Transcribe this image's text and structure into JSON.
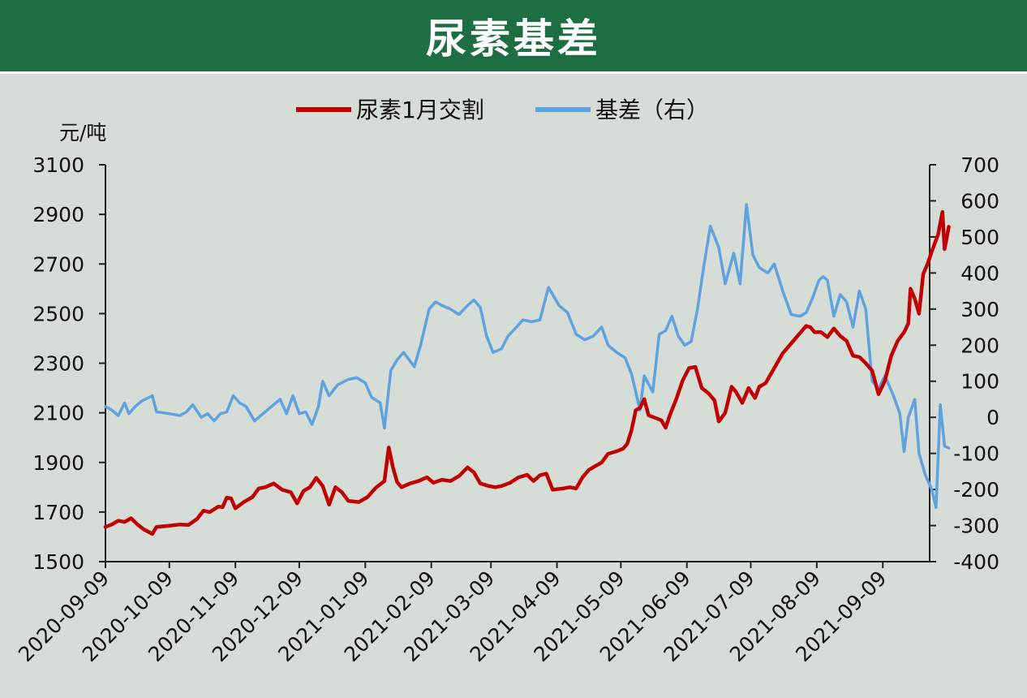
{
  "page": {
    "title": "尿素基差"
  },
  "chart_data": {
    "type": "line",
    "title": "尿素基差",
    "y_left_label": "元/吨",
    "y_left_range": [
      1500,
      3100
    ],
    "y_left_ticks": [
      1500,
      1700,
      1900,
      2100,
      2300,
      2500,
      2700,
      2900,
      3100
    ],
    "y_right_range": [
      -400,
      700
    ],
    "y_right_ticks": [
      -400,
      -300,
      -200,
      -100,
      0,
      100,
      200,
      300,
      400,
      500,
      600,
      700
    ],
    "x_range": [
      "2020-09-09",
      "2021-10-01"
    ],
    "x_ticks": [
      "2020-09-09",
      "2020-10-09",
      "2020-11-09",
      "2020-12-09",
      "2021-01-09",
      "2021-02-09",
      "2021-03-09",
      "2021-04-09",
      "2021-05-09",
      "2021-06-09",
      "2021-07-09",
      "2021-08-09",
      "2021-09-09"
    ],
    "legend_position": "top",
    "grid": false,
    "series": [
      {
        "name": "尿素1月交割",
        "axis": "left",
        "color": "#c00000",
        "points": [
          [
            "2020-09-09",
            1640
          ],
          [
            "2020-09-12",
            1650
          ],
          [
            "2020-09-15",
            1665
          ],
          [
            "2020-09-18",
            1660
          ],
          [
            "2020-09-21",
            1675
          ],
          [
            "2020-09-24",
            1650
          ],
          [
            "2020-09-27",
            1630
          ],
          [
            "2020-10-01",
            1612
          ],
          [
            "2020-10-03",
            1640
          ],
          [
            "2020-10-09",
            1645
          ],
          [
            "2020-10-14",
            1650
          ],
          [
            "2020-10-18",
            1648
          ],
          [
            "2020-10-22",
            1672
          ],
          [
            "2020-10-25",
            1705
          ],
          [
            "2020-10-28",
            1700
          ],
          [
            "2020-11-01",
            1722
          ],
          [
            "2020-11-03",
            1720
          ],
          [
            "2020-11-05",
            1758
          ],
          [
            "2020-11-07",
            1755
          ],
          [
            "2020-11-09",
            1715
          ],
          [
            "2020-11-13",
            1740
          ],
          [
            "2020-11-17",
            1760
          ],
          [
            "2020-11-20",
            1795
          ],
          [
            "2020-11-23",
            1800
          ],
          [
            "2020-11-27",
            1815
          ],
          [
            "2020-12-01",
            1790
          ],
          [
            "2020-12-05",
            1780
          ],
          [
            "2020-12-08",
            1735
          ],
          [
            "2020-12-11",
            1785
          ],
          [
            "2020-12-14",
            1800
          ],
          [
            "2020-12-17",
            1838
          ],
          [
            "2020-12-20",
            1805
          ],
          [
            "2020-12-23",
            1730
          ],
          [
            "2020-12-26",
            1800
          ],
          [
            "2020-12-29",
            1780
          ],
          [
            "2021-01-01",
            1745
          ],
          [
            "2021-01-06",
            1740
          ],
          [
            "2021-01-10",
            1760
          ],
          [
            "2021-01-14",
            1798
          ],
          [
            "2021-01-18",
            1825
          ],
          [
            "2021-01-20",
            1960
          ],
          [
            "2021-01-22",
            1880
          ],
          [
            "2021-01-24",
            1820
          ],
          [
            "2021-01-26",
            1800
          ],
          [
            "2021-01-30",
            1815
          ],
          [
            "2021-02-03",
            1825
          ],
          [
            "2021-02-07",
            1840
          ],
          [
            "2021-02-10",
            1818
          ],
          [
            "2021-02-14",
            1830
          ],
          [
            "2021-02-18",
            1825
          ],
          [
            "2021-02-22",
            1845
          ],
          [
            "2021-02-26",
            1880
          ],
          [
            "2021-03-01",
            1860
          ],
          [
            "2021-03-04",
            1815
          ],
          [
            "2021-03-08",
            1805
          ],
          [
            "2021-03-11",
            1800
          ],
          [
            "2021-03-14",
            1805
          ],
          [
            "2021-03-18",
            1818
          ],
          [
            "2021-03-22",
            1840
          ],
          [
            "2021-03-26",
            1850
          ],
          [
            "2021-03-29",
            1825
          ],
          [
            "2021-04-01",
            1848
          ],
          [
            "2021-04-04",
            1855
          ],
          [
            "2021-04-07",
            1790
          ],
          [
            "2021-04-12",
            1795
          ],
          [
            "2021-04-15",
            1800
          ],
          [
            "2021-04-18",
            1795
          ],
          [
            "2021-04-21",
            1840
          ],
          [
            "2021-04-24",
            1870
          ],
          [
            "2021-04-27",
            1885
          ],
          [
            "2021-04-30",
            1900
          ],
          [
            "2021-05-03",
            1935
          ],
          [
            "2021-05-07",
            1945
          ],
          [
            "2021-05-10",
            1955
          ],
          [
            "2021-05-12",
            1975
          ],
          [
            "2021-05-14",
            2030
          ],
          [
            "2021-05-16",
            2110
          ],
          [
            "2021-05-18",
            2120
          ],
          [
            "2021-05-20",
            2155
          ],
          [
            "2021-05-22",
            2090
          ],
          [
            "2021-05-25",
            2080
          ],
          [
            "2021-05-28",
            2070
          ],
          [
            "2021-05-30",
            2040
          ],
          [
            "2021-06-01",
            2090
          ],
          [
            "2021-06-04",
            2155
          ],
          [
            "2021-06-07",
            2230
          ],
          [
            "2021-06-10",
            2280
          ],
          [
            "2021-06-13",
            2285
          ],
          [
            "2021-06-16",
            2200
          ],
          [
            "2021-06-19",
            2180
          ],
          [
            "2021-06-22",
            2150
          ],
          [
            "2021-06-24",
            2065
          ],
          [
            "2021-06-27",
            2100
          ],
          [
            "2021-06-30",
            2205
          ],
          [
            "2021-07-02",
            2185
          ],
          [
            "2021-07-05",
            2140
          ],
          [
            "2021-07-08",
            2200
          ],
          [
            "2021-07-11",
            2160
          ],
          [
            "2021-07-13",
            2205
          ],
          [
            "2021-07-16",
            2220
          ],
          [
            "2021-07-20",
            2280
          ],
          [
            "2021-07-24",
            2340
          ],
          [
            "2021-07-28",
            2380
          ],
          [
            "2021-08-01",
            2420
          ],
          [
            "2021-08-04",
            2450
          ],
          [
            "2021-08-06",
            2445
          ],
          [
            "2021-08-08",
            2425
          ],
          [
            "2021-08-11",
            2425
          ],
          [
            "2021-08-14",
            2405
          ],
          [
            "2021-08-17",
            2440
          ],
          [
            "2021-08-20",
            2410
          ],
          [
            "2021-08-23",
            2390
          ],
          [
            "2021-08-26",
            2330
          ],
          [
            "2021-08-29",
            2325
          ],
          [
            "2021-09-01",
            2300
          ],
          [
            "2021-09-04",
            2270
          ],
          [
            "2021-09-07",
            2175
          ],
          [
            "2021-09-10",
            2230
          ],
          [
            "2021-09-13",
            2330
          ],
          [
            "2021-09-16",
            2390
          ],
          [
            "2021-09-19",
            2425
          ],
          [
            "2021-09-21",
            2460
          ],
          [
            "2021-09-22",
            2600
          ],
          [
            "2021-09-24",
            2560
          ],
          [
            "2021-09-26",
            2500
          ],
          [
            "2021-09-28",
            2660
          ],
          [
            "2021-09-30",
            2700
          ],
          [
            "2021-10-02",
            2750
          ],
          [
            "2021-10-05",
            2820
          ],
          [
            "2021-10-07",
            2910
          ],
          [
            "2021-10-08",
            2760
          ],
          [
            "2021-10-10",
            2850
          ]
        ]
      },
      {
        "name": "基差（右）",
        "axis": "right",
        "color": "#5fa2e0",
        "points": [
          [
            "2020-09-09",
            30
          ],
          [
            "2020-09-12",
            20
          ],
          [
            "2020-09-15",
            5
          ],
          [
            "2020-09-18",
            40
          ],
          [
            "2020-09-20",
            10
          ],
          [
            "2020-09-23",
            30
          ],
          [
            "2020-09-26",
            45
          ],
          [
            "2020-10-01",
            60
          ],
          [
            "2020-10-03",
            15
          ],
          [
            "2020-10-09",
            10
          ],
          [
            "2020-10-14",
            5
          ],
          [
            "2020-10-17",
            15
          ],
          [
            "2020-10-20",
            35
          ],
          [
            "2020-10-24",
            0
          ],
          [
            "2020-10-27",
            10
          ],
          [
            "2020-10-30",
            -10
          ],
          [
            "2020-11-02",
            10
          ],
          [
            "2020-11-05",
            15
          ],
          [
            "2020-11-08",
            60
          ],
          [
            "2020-11-11",
            40
          ],
          [
            "2020-11-14",
            30
          ],
          [
            "2020-11-18",
            -10
          ],
          [
            "2020-11-22",
            10
          ],
          [
            "2020-11-26",
            30
          ],
          [
            "2020-11-30",
            50
          ],
          [
            "2020-12-03",
            10
          ],
          [
            "2020-12-06",
            60
          ],
          [
            "2020-12-09",
            10
          ],
          [
            "2020-12-12",
            15
          ],
          [
            "2020-12-15",
            -20
          ],
          [
            "2020-12-18",
            30
          ],
          [
            "2020-12-20",
            100
          ],
          [
            "2020-12-23",
            60
          ],
          [
            "2020-12-27",
            90
          ],
          [
            "2021-01-01",
            105
          ],
          [
            "2021-01-05",
            110
          ],
          [
            "2021-01-09",
            95
          ],
          [
            "2021-01-12",
            55
          ],
          [
            "2021-01-16",
            40
          ],
          [
            "2021-01-18",
            -30
          ],
          [
            "2021-01-21",
            130
          ],
          [
            "2021-01-24",
            160
          ],
          [
            "2021-01-27",
            180
          ],
          [
            "2021-02-01",
            140
          ],
          [
            "2021-02-04",
            200
          ],
          [
            "2021-02-08",
            300
          ],
          [
            "2021-02-11",
            320
          ],
          [
            "2021-02-14",
            310
          ],
          [
            "2021-02-18",
            300
          ],
          [
            "2021-02-22",
            285
          ],
          [
            "2021-02-26",
            310
          ],
          [
            "2021-03-01",
            325
          ],
          [
            "2021-03-04",
            305
          ],
          [
            "2021-03-07",
            225
          ],
          [
            "2021-03-10",
            180
          ],
          [
            "2021-03-14",
            190
          ],
          [
            "2021-03-17",
            225
          ],
          [
            "2021-03-21",
            250
          ],
          [
            "2021-03-24",
            270
          ],
          [
            "2021-03-28",
            265
          ],
          [
            "2021-04-01",
            270
          ],
          [
            "2021-04-05",
            360
          ],
          [
            "2021-04-10",
            310
          ],
          [
            "2021-04-14",
            290
          ],
          [
            "2021-04-18",
            230
          ],
          [
            "2021-04-22",
            215
          ],
          [
            "2021-04-26",
            225
          ],
          [
            "2021-04-30",
            250
          ],
          [
            "2021-05-03",
            200
          ],
          [
            "2021-05-07",
            180
          ],
          [
            "2021-05-11",
            165
          ],
          [
            "2021-05-14",
            120
          ],
          [
            "2021-05-18",
            20
          ],
          [
            "2021-05-20",
            115
          ],
          [
            "2021-05-24",
            70
          ],
          [
            "2021-05-27",
            230
          ],
          [
            "2021-05-30",
            240
          ],
          [
            "2021-06-02",
            280
          ],
          [
            "2021-06-05",
            225
          ],
          [
            "2021-06-08",
            200
          ],
          [
            "2021-06-11",
            210
          ],
          [
            "2021-06-14",
            300
          ],
          [
            "2021-06-17",
            420
          ],
          [
            "2021-06-20",
            530
          ],
          [
            "2021-06-24",
            470
          ],
          [
            "2021-06-27",
            370
          ],
          [
            "2021-07-01",
            455
          ],
          [
            "2021-07-04",
            370
          ],
          [
            "2021-07-07",
            590
          ],
          [
            "2021-07-10",
            450
          ],
          [
            "2021-07-13",
            415
          ],
          [
            "2021-07-17",
            400
          ],
          [
            "2021-07-20",
            425
          ],
          [
            "2021-07-24",
            350
          ],
          [
            "2021-07-28",
            285
          ],
          [
            "2021-08-01",
            280
          ],
          [
            "2021-08-04",
            290
          ],
          [
            "2021-08-07",
            330
          ],
          [
            "2021-08-10",
            380
          ],
          [
            "2021-08-12",
            390
          ],
          [
            "2021-08-14",
            380
          ],
          [
            "2021-08-17",
            280
          ],
          [
            "2021-08-20",
            340
          ],
          [
            "2021-08-23",
            320
          ],
          [
            "2021-08-26",
            250
          ],
          [
            "2021-08-29",
            350
          ],
          [
            "2021-09-01",
            300
          ],
          [
            "2021-09-04",
            100
          ],
          [
            "2021-09-07",
            80
          ],
          [
            "2021-09-10",
            115
          ],
          [
            "2021-09-14",
            60
          ],
          [
            "2021-09-17",
            10
          ],
          [
            "2021-09-19",
            -95
          ],
          [
            "2021-09-21",
            0
          ],
          [
            "2021-09-24",
            50
          ],
          [
            "2021-09-26",
            -100
          ],
          [
            "2021-09-29",
            -160
          ],
          [
            "2021-10-02",
            -200
          ],
          [
            "2021-10-04",
            -250
          ],
          [
            "2021-10-06",
            35
          ],
          [
            "2021-10-08",
            -80
          ],
          [
            "2021-10-10",
            -85
          ]
        ]
      }
    ]
  }
}
